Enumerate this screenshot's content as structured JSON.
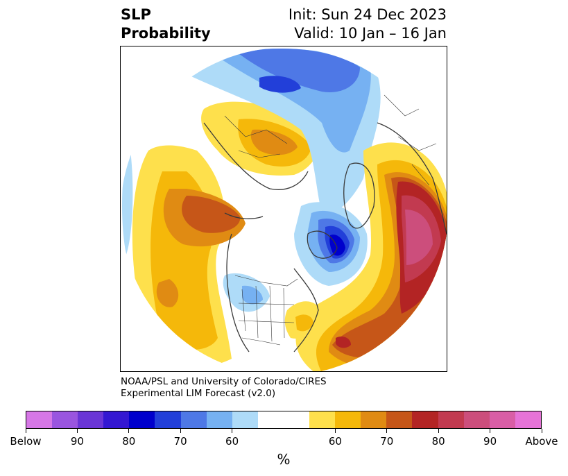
{
  "header": {
    "variable": "SLP",
    "product": "Probability",
    "init": "Init: Sun 24 Dec 2023",
    "valid": "Valid: 10 Jan – 16 Jan"
  },
  "map": {
    "projection": "north polar stereographic",
    "region": "Northern Hemisphere, North America / Arctic / North Atlantic"
  },
  "credit": {
    "line1": "NOAA/PSL and University of Colorado/CIRES",
    "line2": "Experimental LIM Forecast (v2.0)"
  },
  "colorbar": {
    "unit": "%",
    "labels": [
      "Below",
      "90",
      "80",
      "70",
      "60",
      "60",
      "70",
      "80",
      "90",
      "Above"
    ],
    "colors": [
      "#d677e6",
      "#9a55df",
      "#6a35d6",
      "#3417d2",
      "#0000cc",
      "#223fd9",
      "#4e78e6",
      "#76b1f2",
      "#aedbf8",
      "#ffffff",
      "#ffffff",
      "#fee04c",
      "#f5b80a",
      "#e08b13",
      "#c65618",
      "#b32424",
      "#c23a50",
      "#cc4e7c",
      "#d95ea6",
      "#e673d7"
    ]
  }
}
